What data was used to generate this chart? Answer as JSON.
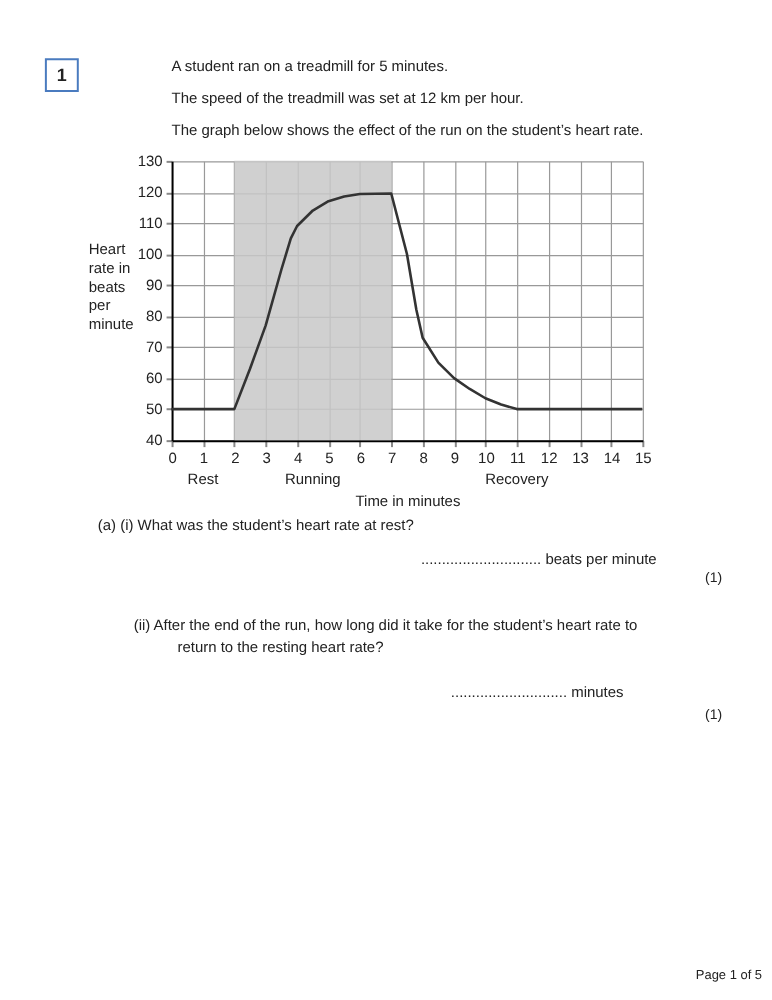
{
  "chart_data": {
    "type": "line",
    "title": "A student ran on a treadmill for 5 minutes.",
    "subtitle": "The speed of the treadmill was set at 12 km per hour.\nThe graph below shows the effect of the run on the student’s heart rate.",
    "xlabel": "Time in minutes",
    "ylabel": "Heart rate in beats per minute",
    "x": [
      0,
      2,
      2.5,
      3,
      3.5,
      3.8,
      4,
      4.5,
      5,
      5.5,
      6,
      7,
      7.5,
      7.8,
      8,
      8.5,
      9,
      9.5,
      10,
      10.5,
      11,
      15
    ],
    "series": [
      {
        "color": "#333333",
        "values": [
          50,
          50,
          63,
          77,
          95,
          105,
          109,
          114,
          117,
          118.5,
          119.3,
          119.5,
          100,
          82,
          73,
          65,
          60,
          56.5,
          53.5,
          51.5,
          50,
          50
        ]
      }
    ],
    "xlim": [
      0,
      15
    ],
    "xticks": [
      0,
      1,
      2,
      3,
      4,
      5,
      6,
      7,
      8,
      9,
      10,
      11,
      12,
      13,
      14,
      15
    ],
    "ylim": [
      40,
      130
    ],
    "yticks": [
      40,
      50,
      60,
      70,
      80,
      90,
      100,
      110,
      120,
      130
    ],
    "grid": true,
    "marker": "none",
    "line_style": "solid",
    "bands": [
      {
        "axis": "x",
        "from": 2,
        "to": 7,
        "label": "Running",
        "color": "#c8c8c8"
      }
    ],
    "annotations": [
      "Rest",
      "Recovery",
      "1",
      "(a)   (i)    What was the student’s heart rate at rest?",
      "............................. beats per minute",
      "(1)",
      "(ii)   After the end of the run, how long did it take for the student’s heart rate to return to the resting heart rate?",
      "............................ minutes",
      "(1)",
      "Page 1 of 5"
    ]
  }
}
